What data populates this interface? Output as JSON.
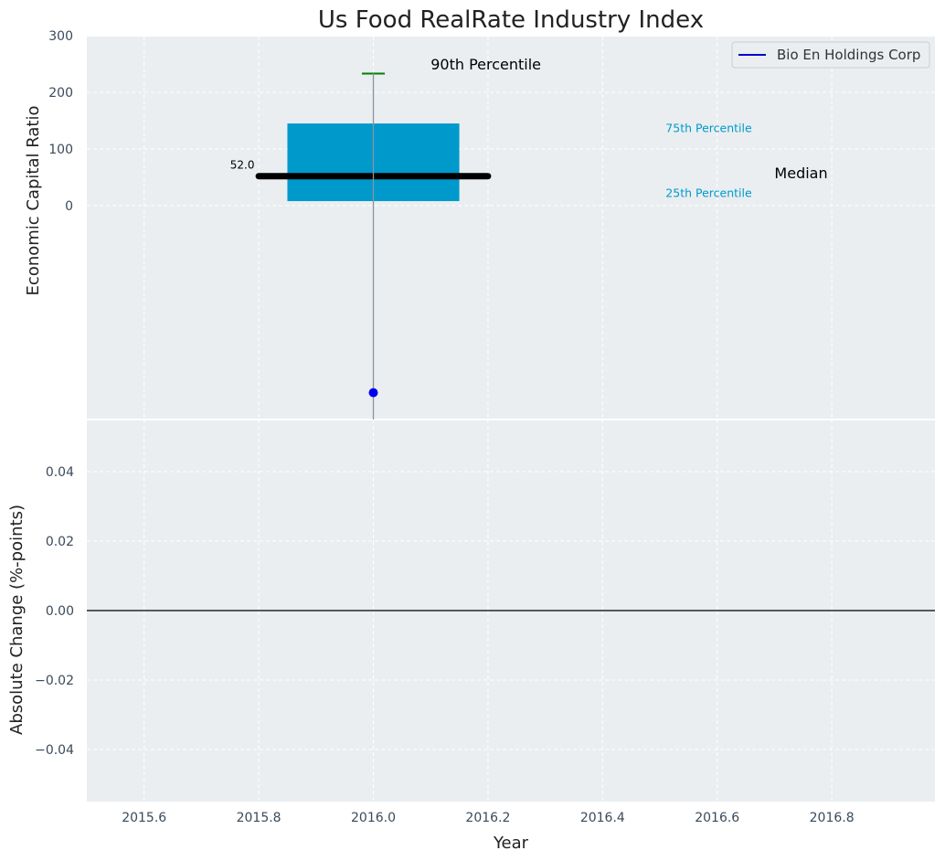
{
  "chart_data": [
    {
      "type": "box",
      "title": "Us Food RealRate Industry Index",
      "xlabel": "",
      "ylabel": "Economic Capital Ratio",
      "xlim": [
        2015.5,
        2016.98
      ],
      "ylim_visible_ticks": [
        0,
        300
      ],
      "yticks": [
        0,
        100,
        200,
        300
      ],
      "grid": true,
      "legend": {
        "position": "top-right",
        "entries": [
          {
            "name": "Bio En Holdings Corp",
            "color": "#0000cc"
          }
        ]
      },
      "box": {
        "x": 2016.0,
        "x_left": 2015.85,
        "x_right": 2016.15,
        "p25": 8,
        "p75": 145,
        "median": 52,
        "median_x_range": [
          2015.8,
          2016.2
        ],
        "p90": 233,
        "p90_cap_x_range": [
          2015.98,
          2016.02
        ],
        "whisker_low_below_range": true
      },
      "company_point": {
        "x": 2016.0,
        "y": -330,
        "color": "#0000ee"
      },
      "colors": {
        "box": "#0099cc",
        "median": "#000000",
        "p90_cap": "#008000",
        "whisker": "#8a949e"
      },
      "annotations": {
        "p90": {
          "text": "90th Percentile",
          "x": 2016.1,
          "y": 240
        },
        "p75": {
          "text": "75th Percentile",
          "x": 2016.51,
          "y": 130
        },
        "median": {
          "text": "Median",
          "x": 2016.7,
          "y": 48
        },
        "p25": {
          "text": "25th Percentile",
          "x": 2016.51,
          "y": 15
        },
        "median_value": {
          "text": "52.0",
          "x": 2015.75,
          "y": 65
        }
      }
    },
    {
      "type": "line",
      "xlabel": "Year",
      "ylabel": "Absolute Change (%-points)",
      "xlim": [
        2015.5,
        2016.98
      ],
      "ylim": [
        -0.055,
        0.055
      ],
      "xticks": [
        "2015.6",
        "2015.8",
        "2016.0",
        "2016.2",
        "2016.4",
        "2016.6",
        "2016.8"
      ],
      "yticks": [
        "−0.04",
        "−0.02",
        "0.00",
        "0.02",
        "0.04"
      ],
      "grid": true,
      "baseline": 0,
      "series": []
    }
  ]
}
